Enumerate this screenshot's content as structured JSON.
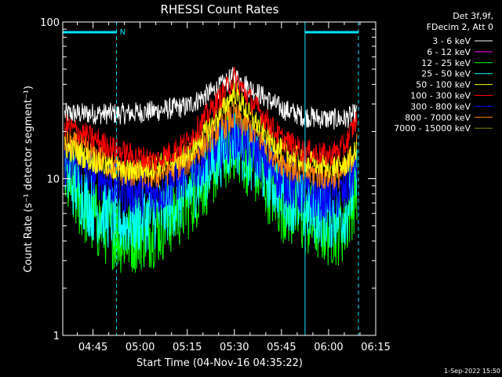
{
  "colors": {
    "background": "#000000",
    "foreground": "#ffffff",
    "interval_marker": "#00e5ff"
  },
  "footer": {
    "timestamp": "1-Sep-2022 15:50"
  },
  "chart_data": {
    "type": "line",
    "title": "RHESSI Count Rates",
    "xlabel": "Start Time (04-Nov-16 04:35:22)",
    "ylabel": "Count Rate (s⁻¹ detector segment⁻¹)",
    "y_scale": "log",
    "ylim": [
      1,
      100
    ],
    "y_ticks": [
      {
        "value": 1,
        "label": "1"
      },
      {
        "value": 10,
        "label": "10"
      },
      {
        "value": 100,
        "label": "100"
      }
    ],
    "xlim": [
      "04:35:22",
      "06:15:00"
    ],
    "x_ticks": [
      "04:45",
      "05:00",
      "05:15",
      "05:30",
      "05:45",
      "06:00",
      "06:15"
    ],
    "grid": false,
    "legend": {
      "placement": "top-right, outside plot",
      "header": [
        "Det 3f,9f,",
        "FDecim 2, Att 0"
      ]
    },
    "annotations": [
      {
        "type": "interval_bar",
        "start": "04:35:22",
        "end": "04:52:30",
        "label": "N"
      },
      {
        "type": "interval_bar",
        "start": "05:52:30",
        "end": "06:09:30",
        "label": ""
      },
      {
        "type": "vline",
        "x": "04:35:22",
        "style": "solid"
      },
      {
        "type": "vline",
        "x": "04:52:30",
        "style": "dashed"
      },
      {
        "type": "vline",
        "x": "05:52:30",
        "style": "solid"
      },
      {
        "type": "vline",
        "x": "06:09:30",
        "style": "dashed"
      }
    ],
    "x": [
      "04:36",
      "04:45",
      "04:55",
      "05:05",
      "05:15",
      "05:25",
      "05:30",
      "05:35",
      "05:45",
      "05:52",
      "06:00",
      "06:05",
      "06:09"
    ],
    "series": [
      {
        "name": "3 - 6 keV",
        "color": "#ffffff",
        "values": [
          26,
          26,
          26,
          27,
          29,
          38,
          45,
          38,
          28,
          25,
          24,
          24,
          26
        ]
      },
      {
        "name": "6 - 12 keV",
        "color": "#ff00ff",
        "values": [
          null,
          null,
          null,
          null,
          null,
          null,
          null,
          null,
          null,
          null,
          null,
          null,
          null
        ]
      },
      {
        "name": "12 - 25 keV",
        "color": "#00ff00",
        "values": [
          10,
          5.5,
          4.2,
          4.8,
          7,
          13,
          17,
          13,
          7,
          5.5,
          4.8,
          5,
          9
        ]
      },
      {
        "name": "25 - 50 keV",
        "color": "#00ffff",
        "values": [
          11,
          6.5,
          5.2,
          5.8,
          8,
          14,
          18,
          14,
          8.5,
          6.5,
          5.8,
          6,
          10
        ]
      },
      {
        "name": "50 - 100 keV",
        "color": "#ffff00",
        "values": [
          16,
          13,
          11,
          12,
          14,
          25,
          36,
          25,
          15,
          13,
          12,
          12,
          15
        ]
      },
      {
        "name": "100 - 300 keV",
        "color": "#ff0000",
        "values": [
          22,
          18,
          14.5,
          13,
          17,
          32,
          44,
          32,
          18,
          15,
          14,
          16,
          24
        ]
      },
      {
        "name": "300 - 800 keV",
        "color": "#0000ff",
        "values": [
          13,
          11,
          8.5,
          8,
          11,
          16,
          19,
          16,
          10,
          8,
          7.5,
          8,
          12
        ]
      },
      {
        "name": "800 - 7000 keV",
        "color": "#ff8000",
        "values": [
          17,
          14,
          11,
          10.5,
          13,
          21,
          25,
          21,
          13,
          11,
          10.5,
          11,
          16
        ]
      },
      {
        "name": "7000 - 15000 keV",
        "color": "#808000",
        "values": [
          null,
          null,
          null,
          null,
          null,
          null,
          null,
          null,
          null,
          null,
          null,
          null,
          null
        ]
      }
    ]
  }
}
